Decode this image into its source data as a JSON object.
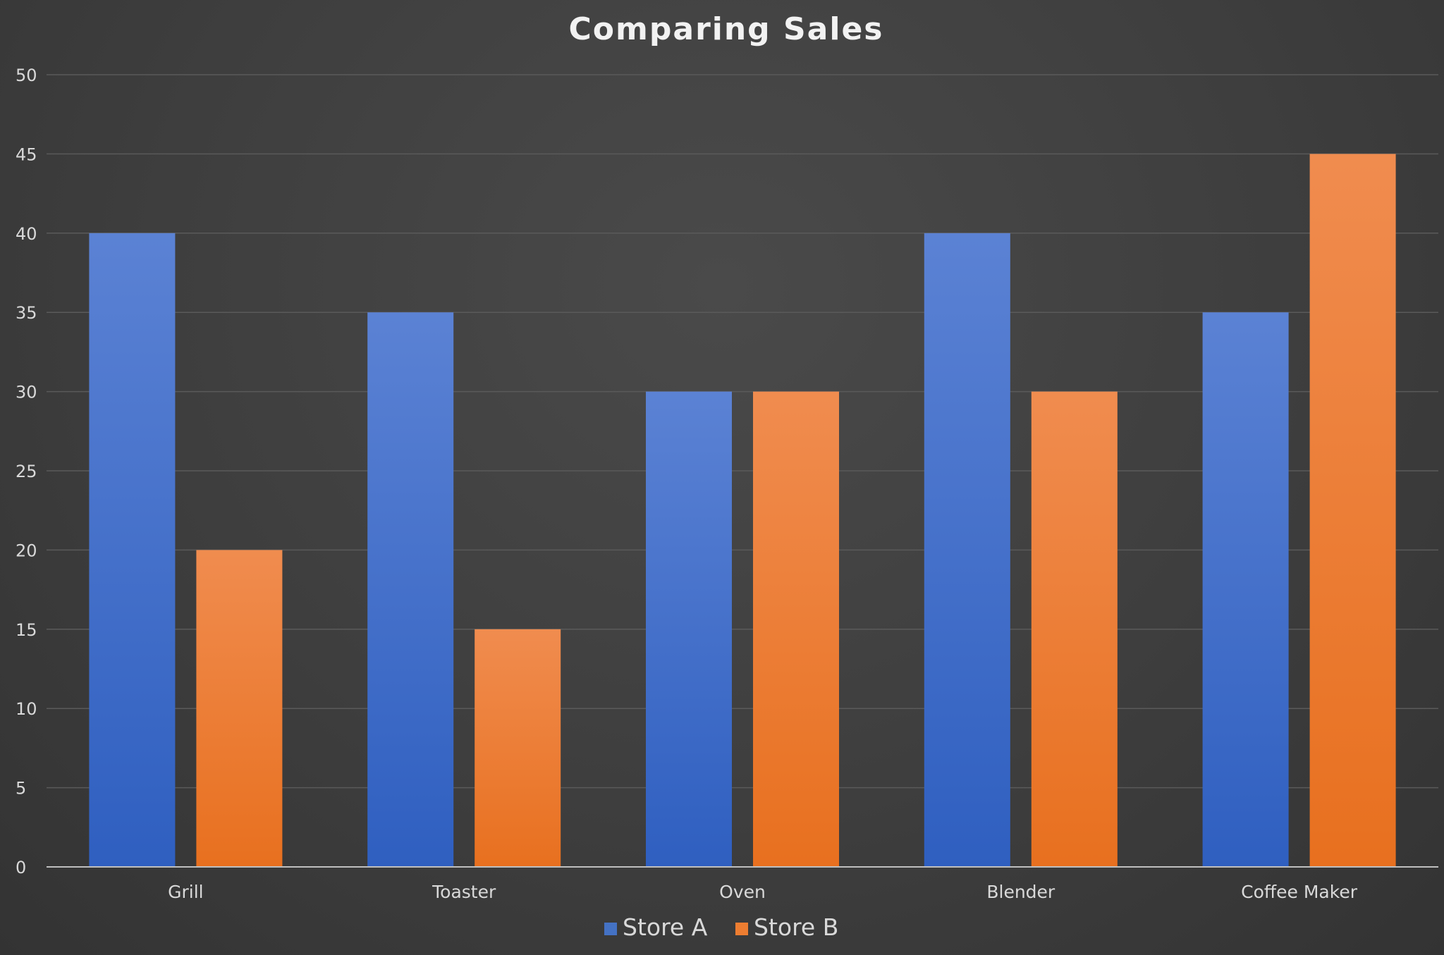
{
  "chart_data": {
    "type": "bar",
    "title": "Comparing Sales",
    "xlabel": "",
    "ylabel": "",
    "categories": [
      "Grill",
      "Toaster",
      "Oven",
      "Blender",
      "Coffee Maker"
    ],
    "series": [
      {
        "name": "Store A",
        "values": [
          40,
          35,
          30,
          40,
          35
        ],
        "color": "#4472C4"
      },
      {
        "name": "Store B",
        "values": [
          20,
          15,
          30,
          30,
          45
        ],
        "color": "#ED7D31"
      }
    ],
    "ylim": [
      0,
      50
    ],
    "ytick_step": 5,
    "grid": true,
    "legend_position": "bottom"
  },
  "colors": {
    "background": "#3e3e3e",
    "text": "#d9d9d9",
    "title": "#f2f2f2",
    "gridline": "#5a5a5a",
    "axis": "#bfbfbf"
  }
}
